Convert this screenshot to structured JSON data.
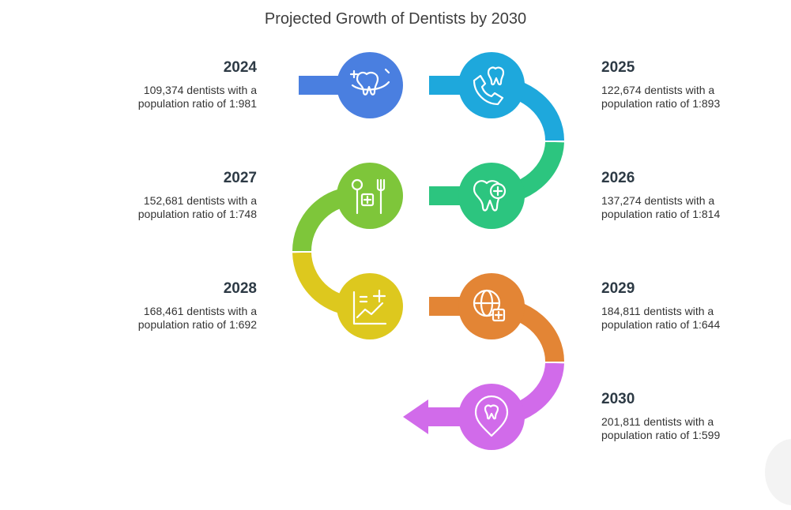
{
  "title": "Projected Growth of Dentists by 2030",
  "steps": [
    {
      "year": "2024",
      "line1": "109,374 dentists with a",
      "line2": "population ratio of 1:981",
      "color": "#4a7fe0",
      "icon": "tooth-floss-icon"
    },
    {
      "year": "2025",
      "line1": "122,674 dentists with a",
      "line2": "population ratio of 1:893",
      "color": "#1ea8dc",
      "icon": "phone-tooth-icon"
    },
    {
      "year": "2026",
      "line1": "137,274 dentists with a",
      "line2": "population ratio of 1:814",
      "color": "#2cc57f",
      "icon": "tooth-plus-icon"
    },
    {
      "year": "2027",
      "line1": "152,681 dentists with a",
      "line2": "population ratio of 1:748",
      "color": "#7ec63a",
      "icon": "mirror-pick-icon"
    },
    {
      "year": "2028",
      "line1": "168,461 dentists with a",
      "line2": "population ratio of 1:692",
      "color": "#ddc81e",
      "icon": "growth-chart-icon"
    },
    {
      "year": "2029",
      "line1": "184,811 dentists with a",
      "line2": "population ratio of 1:644",
      "color": "#e38535",
      "icon": "globe-plus-icon"
    },
    {
      "year": "2030",
      "line1": "201,811 dentists with a",
      "line2": "population ratio of 1:599",
      "color": "#d16bea",
      "icon": "tooth-location-icon"
    }
  ]
}
